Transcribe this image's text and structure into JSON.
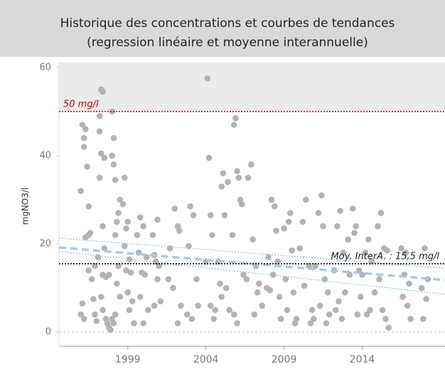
{
  "chart_data": {
    "type": "scatter",
    "title": [
      "Historique des concentrations et courbes de tendances",
      "(regression linéaire et moyenne interannuelle)"
    ],
    "y_label": "mgNO3/l",
    "point_color": "#b3b3b3",
    "xlim": [
      1994.6,
      2019.3
    ],
    "xticks": [
      1999,
      2004,
      2009,
      2014
    ],
    "ylim": [
      -3.2,
      61.1
    ],
    "yticks": [
      0,
      20,
      40,
      60
    ],
    "x": [
      1996.0,
      1996.1,
      1996.2,
      1996.3,
      1996.2,
      1996.4,
      1996.5,
      1996.5,
      1996.3,
      1996.6,
      1996.1,
      1996.0,
      1996.2,
      1996.5,
      1996.7,
      1996.8,
      1996.9,
      1997.0,
      1996.9,
      1997.1,
      1997.3,
      1997.4,
      1997.2,
      1997.2,
      1997.3,
      1997.5,
      1997.2,
      1997.4,
      1997.5,
      1997.4,
      1997.6,
      1997.3,
      1997.4,
      1997.6,
      1997.7,
      1997.8,
      1997.9,
      1997.8,
      1998.0,
      1998.1,
      1998.0,
      1998.1,
      1998.2,
      1998.5,
      1998.4,
      1998.3,
      1998.2,
      1998.4,
      1998.3,
      1998.5,
      1998.2,
      1998.0,
      1998.1,
      1998.8,
      1998.7,
      1999.0,
      1998.9,
      1998.8,
      1999.1,
      1998.9,
      1999.2,
      1999.0,
      1999.3,
      1999.1,
      1999.4,
      1999.8,
      2000.0,
      1999.6,
      1999.7,
      2000.2,
      1999.9,
      2000.1,
      1999.8,
      2000.3,
      2000.0,
      2000.9,
      2000.6,
      2000.7,
      2000.8,
      2001.0,
      2000.9,
      2001.1,
      2000.7,
      2002.0,
      2002.2,
      2002.3,
      2001.7,
      2001.6,
      2001.9,
      2002.4,
      2002.2,
      2003.0,
      2003.2,
      2002.9,
      2003.4,
      2003.5,
      2002.8,
      2003.1,
      2004.1,
      2004.2,
      2004.3,
      2004.4,
      2004.0,
      2004.3,
      2004.6,
      2004.5,
      2005.1,
      2005.0,
      2005.4,
      2005.2,
      2004.8,
      2004.9,
      2005.3,
      2005.0,
      2005.5,
      2005.9,
      2005.8,
      2006.0,
      2006.1,
      2006.2,
      2006.3,
      2005.7,
      2006.4,
      2006.6,
      2005.8,
      2006.0,
      2006.9,
      2006.7,
      2007.0,
      2007.2,
      2007.4,
      2007.3,
      2007.6,
      2007.1,
      2008.2,
      2008.4,
      2008.5,
      2008.0,
      2008.6,
      2008.3,
      2007.9,
      2008.1,
      2008.7,
      2008.8,
      2009.4,
      2009.3,
      2009.0,
      2009.5,
      2009.1,
      2009.6,
      2009.2,
      2009.8,
      2009.7,
      2010.4,
      2010.2,
      2010.0,
      2010.6,
      2010.3,
      2010.8,
      2010.9,
      2010.7,
      2011.4,
      2011.2,
      2011.5,
      2011.0,
      2011.6,
      2011.8,
      2011.3,
      2011.9,
      2011.7,
      2012.6,
      2012.4,
      2012.8,
      2012.2,
      2012.9,
      2012.5,
      2012.3,
      2012.7,
      2013.4,
      2013.6,
      2013.5,
      2013.1,
      2013.8,
      2013.2,
      2013.9,
      2013.7,
      2014.4,
      2014.2,
      2014.6,
      2014.0,
      2014.8,
      2014.5,
      2014.3,
      2015.0,
      2015.2,
      2015.4,
      2015.6,
      2015.1,
      2015.3,
      2015.5,
      2015.7,
      2016.5,
      2016.8,
      2016.7,
      2017.0,
      2016.6,
      2016.9,
      2017.1,
      2018.0,
      2018.2,
      2017.8,
      2018.1,
      2017.9
    ],
    "values": [
      32,
      47,
      44,
      46,
      42,
      37.5,
      28.5,
      22,
      21.5,
      22.5,
      6.5,
      4,
      3,
      14,
      12,
      7.5,
      4,
      2.5,
      15,
      17,
      55,
      54.5,
      49,
      45.5,
      40.5,
      39.5,
      35,
      24,
      19,
      13,
      12.5,
      8,
      5,
      3,
      2,
      1,
      0.5,
      13,
      50,
      44,
      40,
      38,
      34.5,
      30,
      27,
      25,
      22,
      15,
      11,
      8,
      4,
      3,
      2,
      35,
      29,
      25,
      23.5,
      19.5,
      16.5,
      14,
      13.5,
      9,
      7,
      5,
      2,
      26,
      24,
      22,
      18,
      17,
      13.5,
      13,
      8,
      5,
      2,
      25.5,
      22,
      17.5,
      16,
      15,
      12,
      7,
      6,
      28,
      24,
      23,
      19,
      12,
      10,
      6,
      2,
      28.5,
      26.5,
      19.5,
      12,
      6,
      4,
      3,
      57.5,
      39.5,
      26.5,
      22,
      16,
      6,
      5,
      3,
      36,
      33,
      34,
      26.5,
      16,
      11,
      10,
      8,
      5,
      48.5,
      47,
      36.5,
      35,
      30,
      29,
      22,
      13,
      12,
      4,
      2,
      38,
      35,
      21,
      15,
      11,
      9,
      6,
      4,
      30,
      28.5,
      23,
      17,
      16,
      13,
      10,
      9.5,
      8,
      3,
      27,
      25,
      23.5,
      18.5,
      12,
      9,
      5,
      3,
      2,
      30,
      25,
      19,
      15,
      10.5,
      5,
      3,
      2,
      31,
      27,
      24,
      15,
      12,
      9,
      6,
      4,
      2,
      27.5,
      24,
      18,
      14,
      9,
      7,
      5,
      3,
      28,
      24,
      22.5,
      21,
      14,
      13,
      8,
      4,
      21,
      18,
      16,
      13,
      9,
      5,
      4,
      24,
      27,
      19,
      18.5,
      12,
      5,
      3,
      1,
      19,
      18,
      13,
      11,
      8,
      6,
      3,
      19,
      12,
      10,
      7.5,
      3
    ],
    "lines": [
      {
        "style": "dashed",
        "color": "#a9c9e3",
        "x": [
          1994.6,
          2019.3
        ],
        "values": [
          19.2,
          11.8
        ]
      },
      {
        "style": "dotted",
        "color": "#8fbde0",
        "x": [
          1994.6,
          2019.3
        ],
        "values": [
          21.3,
          14.5
        ]
      },
      {
        "style": "dotted",
        "color": "#8fbde0",
        "x": [
          1994.6,
          2019.3
        ],
        "values": [
          18.3,
          8.6
        ]
      }
    ],
    "reference_lines": [
      {
        "value": 50,
        "label": "50 mg/l",
        "color": "#c00000",
        "shade_above": true,
        "label_side": "left"
      },
      {
        "value": 15.5,
        "label": "Moy. InterA. : 15,5 mg/l",
        "color": "#000000",
        "label_side": "right"
      }
    ]
  }
}
